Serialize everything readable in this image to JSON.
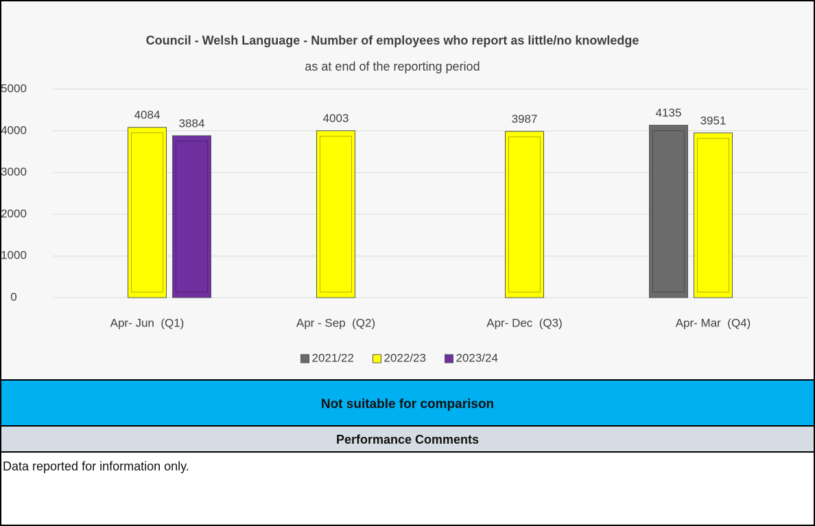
{
  "chart_data": {
    "type": "bar",
    "title": "Council - Welsh Language - Number of employees who report as little/no knowledge",
    "subtitle": "as at end of the reporting period",
    "categories": [
      "Apr- Jun  (Q1)",
      "Apr - Sep  (Q2)",
      "Apr- Dec  (Q3)",
      "Apr- Mar  (Q4)"
    ],
    "series": [
      {
        "name": "2021/22",
        "color": "#6b6b6b",
        "values": [
          null,
          null,
          null,
          4135
        ]
      },
      {
        "name": "2022/23",
        "color": "#ffff00",
        "values": [
          4084,
          4003,
          3987,
          3951
        ]
      },
      {
        "name": "2023/24",
        "color": "#7030a0",
        "values": [
          3884,
          null,
          null,
          null
        ]
      }
    ],
    "ylim": [
      0,
      5000
    ],
    "yticks": [
      0,
      1000,
      2000,
      3000,
      4000,
      5000
    ],
    "grid": true,
    "legend": "bottom"
  },
  "banner": "Not suitable for comparison",
  "comments_header": "Performance Comments",
  "comment": "Data reported for information only."
}
